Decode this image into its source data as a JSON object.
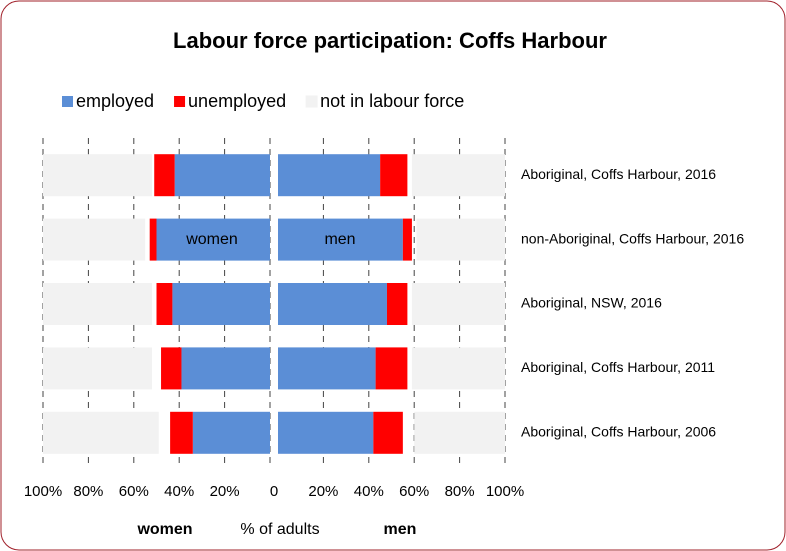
{
  "chart_data": {
    "type": "butterfly",
    "title": "Labour force participation: Coffs Harbour",
    "xlabel": "% of adults",
    "categories": [
      "Aboriginal, Coffs Harbour, 2016",
      "non-Aboriginal, Coffs Harbour, 2016",
      "Aboriginal, NSW, 2016",
      "Aboriginal, Coffs Harbour, 2011",
      "Aboriginal, Coffs Harbour, 2006"
    ],
    "grid": true,
    "panels": [
      {
        "name": "women",
        "color": "#ff0000",
        "direction": "left",
        "xlim": [
          0,
          100
        ],
        "xticks": [
          {
            "value": 100,
            "label": "100%"
          },
          {
            "value": 80,
            "label": "80%"
          },
          {
            "value": 60,
            "label": "60%"
          },
          {
            "value": 40,
            "label": "40%"
          },
          {
            "value": 20,
            "label": "20%"
          },
          0
        ],
        "series": [
          {
            "name": "employed",
            "color": "#5b8ed6",
            "values": [
              42,
              50,
              43,
              39,
              34
            ]
          },
          {
            "name": "unemployed",
            "color": "#ff0000",
            "values": [
              9,
              3,
              7,
              9,
              10
            ]
          },
          {
            "name": "not in labour force",
            "color": "#f2f2f2",
            "values": [
              48,
              45,
              48,
              48,
              51
            ]
          }
        ]
      },
      {
        "name": "men",
        "color": "#0000cc",
        "direction": "right",
        "xlim": [
          0,
          100
        ],
        "xticks": [
          {
            "value": 20,
            "label": "20%"
          },
          {
            "value": 40,
            "label": "40%"
          },
          {
            "value": 60,
            "label": "60%"
          },
          {
            "value": 80,
            "label": "80%"
          },
          {
            "value": 100,
            "label": "100%"
          }
        ],
        "series": [
          {
            "name": "employed",
            "color": "#5b8ed6",
            "values": [
              45,
              55,
              48,
              43,
              42
            ]
          },
          {
            "name": "unemployed",
            "color": "#ff0000",
            "values": [
              12,
              4,
              9,
              14,
              13
            ]
          },
          {
            "name": "not in labour force",
            "color": "#f2f2f2",
            "values": [
              41,
              39,
              41,
              41,
              40
            ]
          }
        ]
      }
    ]
  }
}
